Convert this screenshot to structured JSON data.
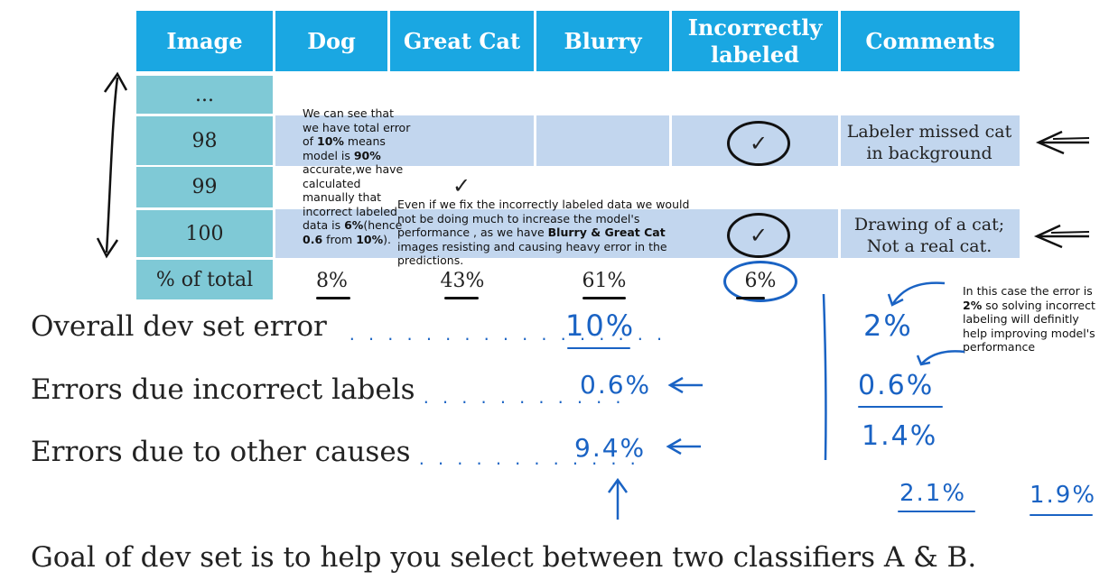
{
  "table": {
    "headers": [
      "Image",
      "Dog",
      "Great Cat",
      "Blurry",
      "Incorrectly labeled",
      "Comments"
    ],
    "rows": [
      {
        "image": "...",
        "comment": ""
      },
      {
        "image": "98",
        "comment": "Labeler missed cat in background",
        "checked": true
      },
      {
        "image": "99",
        "comment": ""
      },
      {
        "image": "100",
        "comment": "Drawing of a cat; Not a real cat.",
        "checked": true
      }
    ],
    "total_label": "% of total",
    "totals": [
      "8%",
      "43%",
      "61%",
      "6%"
    ],
    "checkmark": "✓"
  },
  "notes": {
    "left": {
      "p1": "We can see that we have total error of ",
      "b1": "10%",
      "p2": " means model is ",
      "b2": "90%",
      "p3": " accurate,we have calculated manually that incorrect labeled data is ",
      "b3": "6%",
      "p4": "(hence ",
      "b4": "0.6",
      "p5": " from ",
      "b5": "10%",
      "p6": ")."
    },
    "middle": {
      "p1": "Even if we fix the incorrectly labeled data we would not be doing much to increase the model's performance , as we have ",
      "b1": "Blurry & Great Cat",
      "p2": " images resisting and causing heavy error in the predictions."
    },
    "right": {
      "p1": "In this case the error is ",
      "b1": "2%",
      "p2": " so solving incorrect labeling will definitly help improving model's performance"
    }
  },
  "errors": {
    "overall_label": "Overall dev set error",
    "incorrect_label": "Errors due incorrect labels",
    "other_label": "Errors due to other causes",
    "overall_value": "10%",
    "incorrect_value": "0.6%",
    "other_value": "9.4%",
    "alt_overall": "2%",
    "alt_incorrect": "0.6%",
    "alt_other": "1.4%",
    "extra_a": "2.1%",
    "extra_b": "1.9%"
  },
  "goal_text": "Goal of dev set is to help you select between two classifiers A & B.",
  "colors": {
    "header_bg": "#1aa7e2",
    "image_col_bg": "#7fc9d6",
    "row_band": "#c2d6ee",
    "ink_blue": "#1a63c4"
  }
}
